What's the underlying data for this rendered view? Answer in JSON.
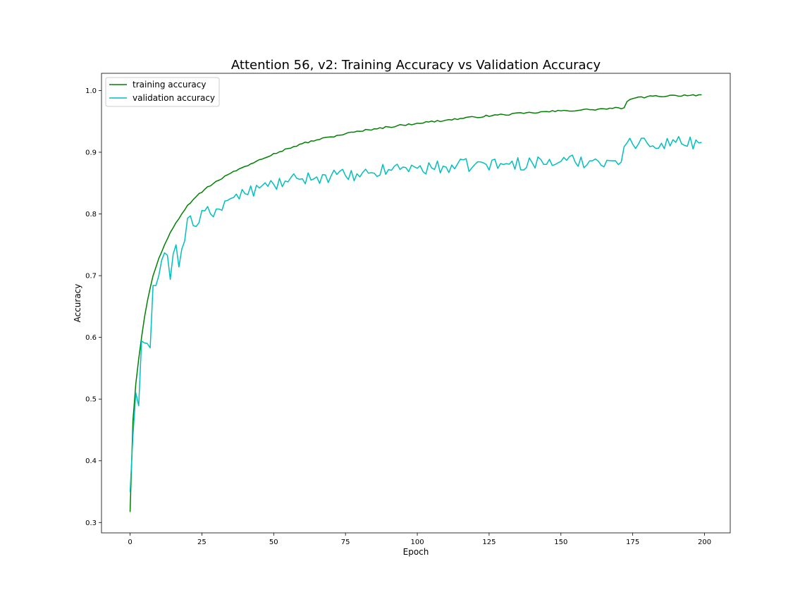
{
  "chart_data": {
    "type": "line",
    "title": "Attention 56, v2: Training Accuracy vs Validation Accuracy",
    "xlabel": "Epoch",
    "ylabel": "Accuracy",
    "xlim": [
      -9.95,
      208.95
    ],
    "ylim": [
      0.2832,
      1.0279
    ],
    "xticks": [
      0,
      25,
      50,
      75,
      100,
      125,
      150,
      175,
      200
    ],
    "yticks": [
      0.3,
      0.4,
      0.5,
      0.6,
      0.7,
      0.8,
      0.9,
      1.0
    ],
    "xtick_labels": [
      "0",
      "25",
      "50",
      "75",
      "100",
      "125",
      "150",
      "175",
      "200"
    ],
    "ytick_labels": [
      "0.3",
      "0.4",
      "0.5",
      "0.6",
      "0.7",
      "0.8",
      "0.9",
      "1.0"
    ],
    "grid": false,
    "legend_position": "top-left",
    "series": [
      {
        "name": "training accuracy",
        "color": "#008000",
        "anchors": [
          [
            0,
            0.317
          ],
          [
            1,
            0.465
          ],
          [
            2,
            0.525
          ],
          [
            3,
            0.565
          ],
          [
            4,
            0.6
          ],
          [
            5,
            0.632
          ],
          [
            6,
            0.658
          ],
          [
            7,
            0.68
          ],
          [
            8,
            0.7
          ],
          [
            10,
            0.728
          ],
          [
            12,
            0.75
          ],
          [
            14,
            0.77
          ],
          [
            16,
            0.786
          ],
          [
            18,
            0.8
          ],
          [
            20,
            0.814
          ],
          [
            23,
            0.828
          ],
          [
            26,
            0.84
          ],
          [
            30,
            0.853
          ],
          [
            35,
            0.866
          ],
          [
            40,
            0.877
          ],
          [
            45,
            0.888
          ],
          [
            50,
            0.898
          ],
          [
            55,
            0.906
          ],
          [
            60,
            0.914
          ],
          [
            65,
            0.92
          ],
          [
            70,
            0.925
          ],
          [
            75,
            0.93
          ],
          [
            80,
            0.934
          ],
          [
            85,
            0.938
          ],
          [
            90,
            0.941
          ],
          [
            95,
            0.944
          ],
          [
            100,
            0.947
          ],
          [
            110,
            0.952
          ],
          [
            120,
            0.957
          ],
          [
            130,
            0.961
          ],
          [
            140,
            0.964
          ],
          [
            150,
            0.967
          ],
          [
            160,
            0.969
          ],
          [
            168,
            0.971
          ],
          [
            172,
            0.972
          ],
          [
            173,
            0.982
          ],
          [
            175,
            0.987
          ],
          [
            180,
            0.99
          ],
          [
            190,
            0.992
          ],
          [
            199,
            0.993
          ]
        ],
        "noise": 0.0015
      },
      {
        "name": "validation accuracy",
        "color": "#00bfbf",
        "anchors": [
          [
            0,
            0.349
          ],
          [
            1,
            0.44
          ],
          [
            2,
            0.51
          ],
          [
            3,
            0.489
          ],
          [
            4,
            0.594
          ],
          [
            5,
            0.591
          ],
          [
            6,
            0.59
          ],
          [
            7,
            0.583
          ],
          [
            8,
            0.684
          ],
          [
            9,
            0.684
          ],
          [
            10,
            0.7
          ],
          [
            11,
            0.725
          ],
          [
            12,
            0.737
          ],
          [
            13,
            0.733
          ],
          [
            14,
            0.694
          ],
          [
            15,
            0.735
          ],
          [
            16,
            0.75
          ],
          [
            17,
            0.714
          ],
          [
            18,
            0.743
          ],
          [
            19,
            0.756
          ],
          [
            20,
            0.793
          ],
          [
            21,
            0.797
          ],
          [
            22,
            0.781
          ],
          [
            24,
            0.786
          ],
          [
            26,
            0.805
          ],
          [
            28,
            0.8
          ],
          [
            30,
            0.808
          ],
          [
            35,
            0.825
          ],
          [
            40,
            0.833
          ],
          [
            45,
            0.842
          ],
          [
            50,
            0.848
          ],
          [
            55,
            0.852
          ],
          [
            60,
            0.857
          ],
          [
            65,
            0.86
          ],
          [
            70,
            0.862
          ],
          [
            75,
            0.862
          ],
          [
            80,
            0.86
          ],
          [
            85,
            0.866
          ],
          [
            90,
            0.872
          ],
          [
            95,
            0.876
          ],
          [
            100,
            0.874
          ],
          [
            110,
            0.876
          ],
          [
            120,
            0.88
          ],
          [
            130,
            0.88
          ],
          [
            140,
            0.883
          ],
          [
            150,
            0.885
          ],
          [
            160,
            0.886
          ],
          [
            166,
            0.887
          ],
          [
            171,
            0.884
          ],
          [
            172,
            0.909
          ],
          [
            173,
            0.915
          ],
          [
            175,
            0.913
          ],
          [
            180,
            0.915
          ],
          [
            190,
            0.916
          ],
          [
            199,
            0.916
          ]
        ],
        "noise": 0.011
      }
    ]
  }
}
